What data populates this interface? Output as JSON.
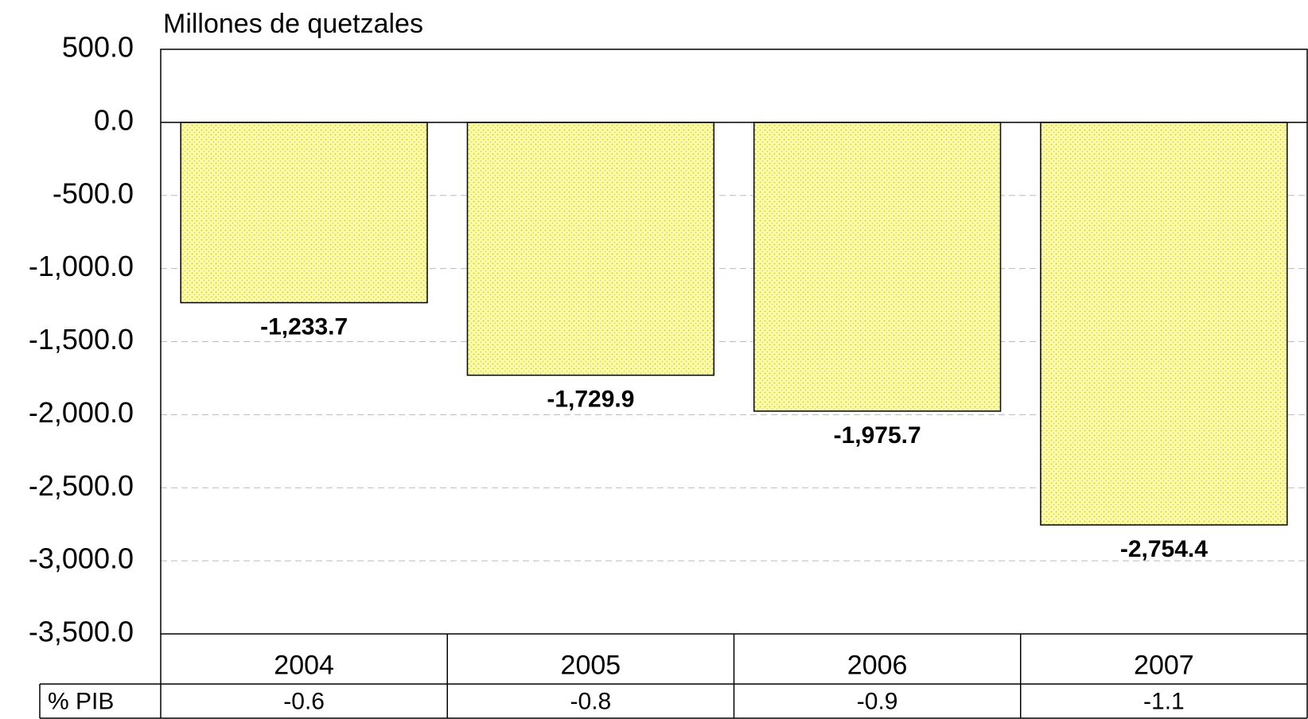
{
  "chart_data": {
    "type": "bar",
    "ylabel": "Millones de quetzales",
    "categories": [
      "2004",
      "2005",
      "2006",
      "2007"
    ],
    "values": [
      -1233.7,
      -1729.9,
      -1975.7,
      -2754.4
    ],
    "value_labels": [
      "-1,233.7",
      "-1,729.9",
      "-1,975.7",
      "-2,754.4"
    ],
    "color": "#ffff99",
    "ylim": [
      -3500,
      500
    ],
    "yticks": [
      {
        "value": 500,
        "label": "500.0"
      },
      {
        "value": 0,
        "label": "0.0"
      },
      {
        "value": -500,
        "label": "-500.0"
      },
      {
        "value": -1000,
        "label": "-1,000.0"
      },
      {
        "value": -1500,
        "label": "-1,500.0"
      },
      {
        "value": -2000,
        "label": "-2,000.0"
      },
      {
        "value": -2500,
        "label": "-2,500.0"
      },
      {
        "value": -3000,
        "label": "-3,000.0"
      },
      {
        "value": -3500,
        "label": "-3,500.0"
      }
    ],
    "grid": true,
    "table": {
      "label": "% PIB",
      "values": [
        -0.6,
        -0.8,
        -0.9,
        -1.1
      ]
    }
  }
}
